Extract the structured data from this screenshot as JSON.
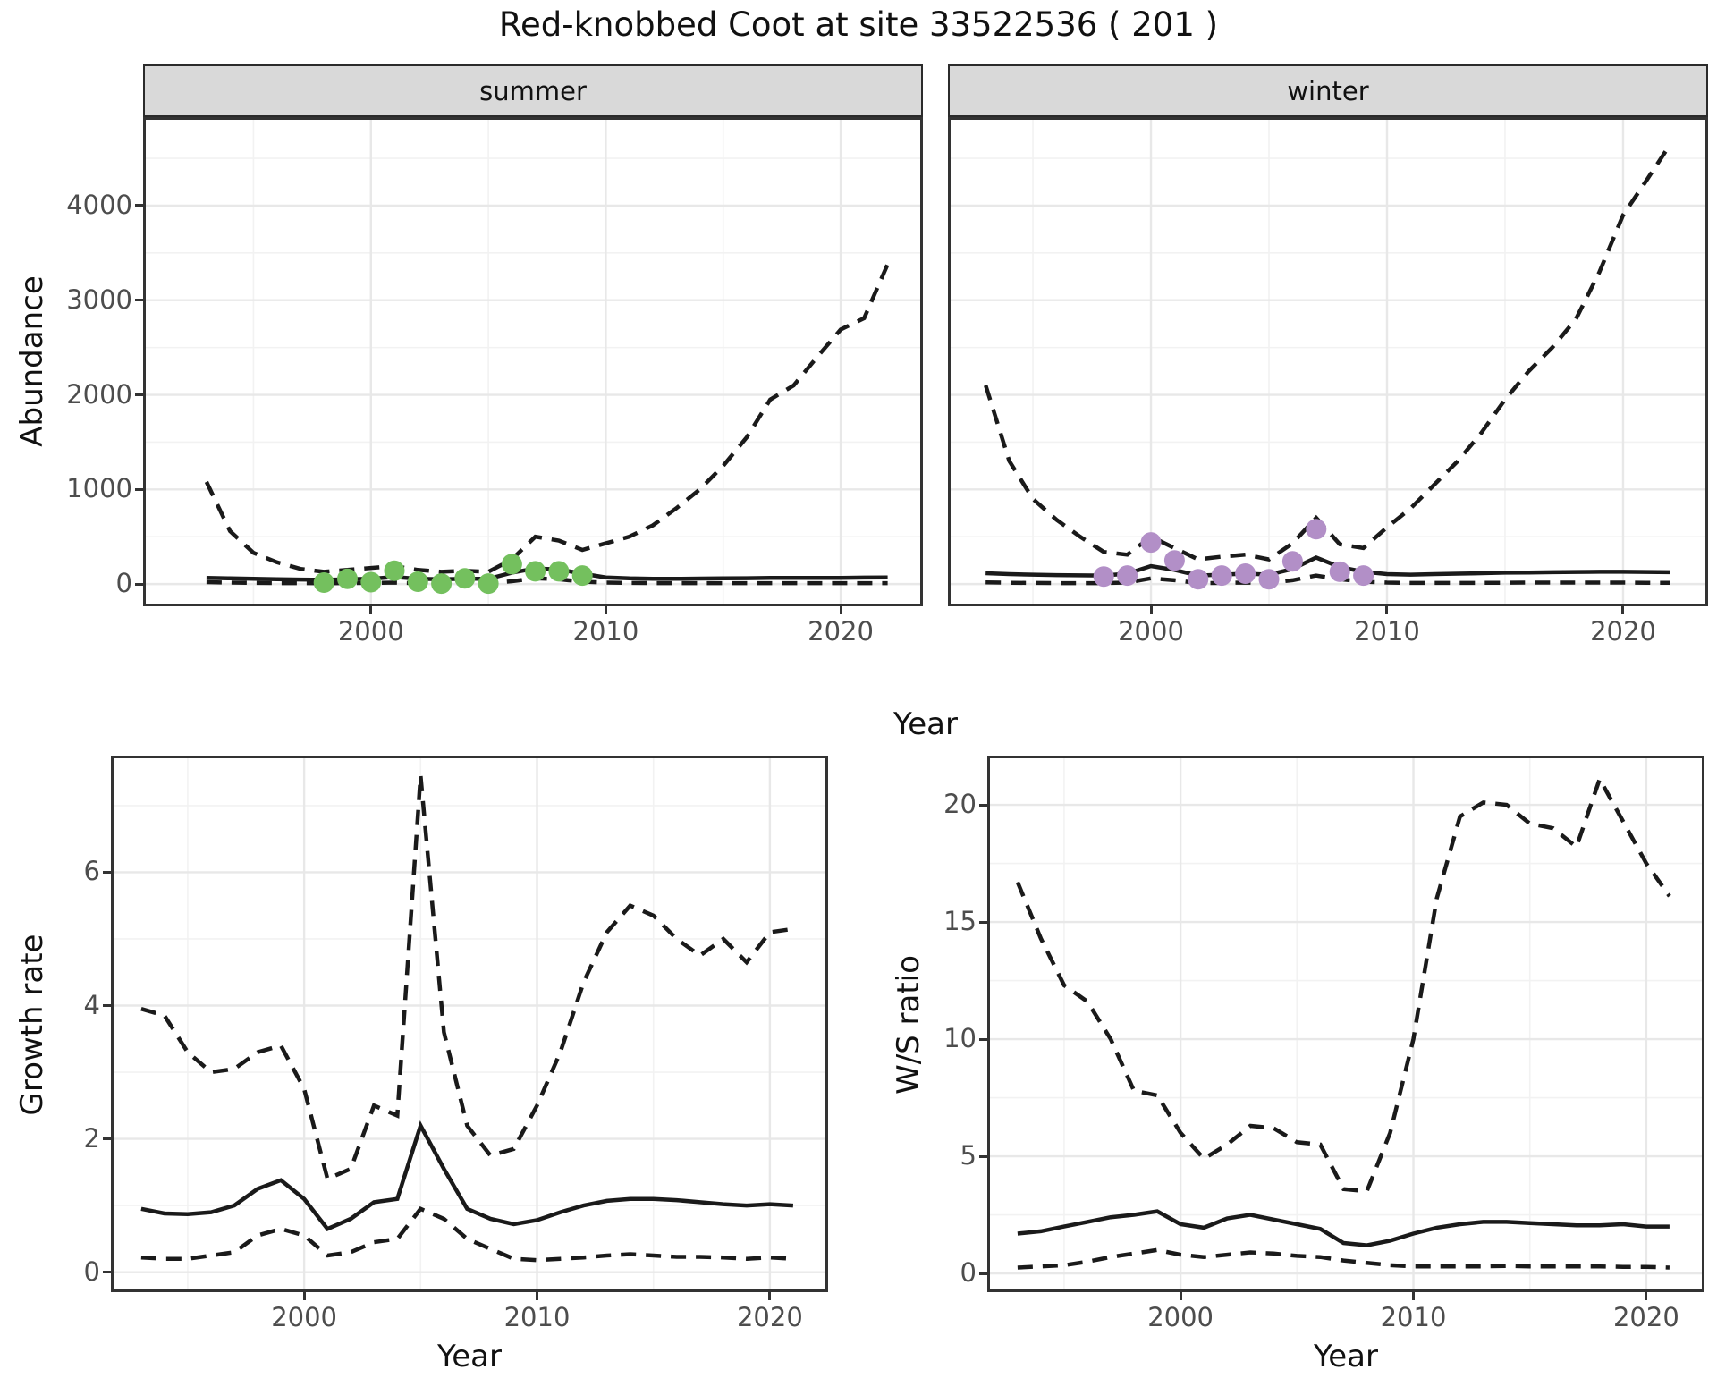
{
  "title": "Red-knobbed Coot at site 33522536 ( 201 )",
  "colors": {
    "line": "#1a1a1a",
    "grid_major": "#e8e8e8",
    "grid_minor": "#f2f2f2",
    "panel_border": "#333333",
    "strip_bg": "#d9d9d9",
    "axis_text": "#4d4d4d",
    "summer_points": "#74c05e",
    "winter_points": "#b28fc7"
  },
  "chart_data": [
    {
      "key": "summer",
      "type": "line",
      "strip_label": "summer",
      "xlabel": "Year",
      "ylabel": "Abundance",
      "xlim": [
        1990.3,
        2023.5
      ],
      "ylim": [
        -235,
        4935
      ],
      "xticks": [
        2000,
        2010,
        2020
      ],
      "xticks_minor": [
        1995,
        2005,
        2015
      ],
      "yticks": [
        0,
        1000,
        2000,
        3000,
        4000
      ],
      "yticks_minor": [
        500,
        1500,
        2500,
        3500,
        4500
      ],
      "grid": true,
      "legend": "none",
      "x": [
        1993,
        1994,
        1995,
        1996,
        1997,
        1998,
        1999,
        2000,
        2001,
        2002,
        2003,
        2004,
        2005,
        2006,
        2007,
        2008,
        2009,
        2010,
        2011,
        2012,
        2013,
        2014,
        2015,
        2016,
        2017,
        2018,
        2019,
        2020,
        2021,
        2022
      ],
      "series": [
        {
          "name": "upper-ci",
          "style": "dashed",
          "values": [
            1080,
            560,
            330,
            230,
            160,
            130,
            150,
            170,
            190,
            150,
            130,
            140,
            130,
            260,
            500,
            460,
            360,
            430,
            500,
            620,
            800,
            1000,
            1250,
            1550,
            1950,
            2100,
            2400,
            2690,
            2810,
            3380
          ]
        },
        {
          "name": "median",
          "style": "solid",
          "values": [
            65,
            60,
            55,
            50,
            48,
            45,
            50,
            55,
            75,
            55,
            50,
            55,
            55,
            120,
            165,
            155,
            110,
            70,
            60,
            55,
            55,
            58,
            60,
            62,
            65,
            65,
            65,
            65,
            68,
            70
          ]
        },
        {
          "name": "lower-ci",
          "style": "dashed",
          "values": [
            20,
            15,
            12,
            10,
            10,
            8,
            10,
            12,
            15,
            10,
            8,
            10,
            10,
            30,
            60,
            50,
            25,
            15,
            12,
            10,
            10,
            10,
            10,
            10,
            10,
            10,
            10,
            10,
            10,
            10
          ]
        }
      ],
      "points": {
        "name": "observed-count",
        "color": "#74c05e",
        "x": [
          1998,
          1999,
          2000,
          2001,
          2002,
          2003,
          2004,
          2005,
          2006,
          2007,
          2008,
          2009
        ],
        "y": [
          15,
          55,
          20,
          140,
          25,
          5,
          60,
          5,
          210,
          135,
          135,
          90
        ]
      }
    },
    {
      "key": "winter",
      "type": "line",
      "strip_label": "winter",
      "xlabel": "Year",
      "ylabel": "Abundance",
      "xlim": [
        1991.4,
        2023.6
      ],
      "ylim": [
        -235,
        4935
      ],
      "xticks": [
        2000,
        2010,
        2020
      ],
      "xticks_minor": [
        1995,
        2005,
        2015
      ],
      "yticks": [
        0,
        1000,
        2000,
        3000,
        4000
      ],
      "yticks_minor": [
        500,
        1500,
        2500,
        3500,
        4500
      ],
      "grid": true,
      "legend": "none",
      "x": [
        1993,
        1994,
        1995,
        1996,
        1997,
        1998,
        1999,
        2000,
        2001,
        2002,
        2003,
        2004,
        2005,
        2006,
        2007,
        2008,
        2009,
        2010,
        2011,
        2012,
        2013,
        2014,
        2015,
        2016,
        2017,
        2018,
        2019,
        2020,
        2021,
        2022
      ],
      "series": [
        {
          "name": "upper-ci",
          "style": "dashed",
          "values": [
            2100,
            1300,
            900,
            680,
            500,
            340,
            310,
            500,
            380,
            260,
            290,
            310,
            260,
            430,
            700,
            420,
            380,
            600,
            800,
            1050,
            1300,
            1600,
            1950,
            2250,
            2500,
            2800,
            3300,
            3900,
            4270,
            4650
          ]
        },
        {
          "name": "median",
          "style": "solid",
          "values": [
            115,
            105,
            100,
            95,
            92,
            90,
            110,
            190,
            150,
            90,
            100,
            110,
            100,
            160,
            280,
            180,
            130,
            105,
            100,
            105,
            110,
            115,
            120,
            122,
            125,
            128,
            130,
            130,
            128,
            125
          ]
        },
        {
          "name": "lower-ci",
          "style": "dashed",
          "values": [
            18,
            14,
            12,
            10,
            10,
            10,
            15,
            60,
            40,
            10,
            12,
            15,
            12,
            40,
            90,
            50,
            25,
            15,
            12,
            12,
            12,
            13,
            14,
            15,
            15,
            15,
            15,
            15,
            14,
            13
          ]
        }
      ],
      "points": {
        "name": "observed-count",
        "color": "#b28fc7",
        "x": [
          1998,
          1999,
          2000,
          2001,
          2002,
          2003,
          2004,
          2005,
          2006,
          2007,
          2008,
          2009
        ],
        "y": [
          80,
          90,
          440,
          250,
          50,
          90,
          110,
          50,
          240,
          580,
          130,
          90
        ]
      }
    },
    {
      "key": "growth",
      "type": "line",
      "strip_label": "",
      "xlabel": "Year",
      "ylabel": "Growth rate",
      "xlim": [
        1991.7,
        2022.5
      ],
      "ylim": [
        -0.3,
        7.75
      ],
      "xticks": [
        2000,
        2010,
        2020
      ],
      "xticks_minor": [
        1995,
        2005,
        2015
      ],
      "yticks": [
        0,
        2,
        4,
        6
      ],
      "yticks_minor": [
        1,
        3,
        5,
        7
      ],
      "grid": true,
      "legend": "none",
      "x": [
        1993,
        1994,
        1995,
        1996,
        1997,
        1998,
        1999,
        2000,
        2001,
        2002,
        2003,
        2004,
        2005,
        2006,
        2007,
        2008,
        2009,
        2010,
        2011,
        2012,
        2013,
        2014,
        2015,
        2016,
        2017,
        2018,
        2019,
        2020,
        2021
      ],
      "series": [
        {
          "name": "upper-ci",
          "style": "dashed",
          "values": [
            3.95,
            3.85,
            3.3,
            3.0,
            3.05,
            3.3,
            3.4,
            2.75,
            1.4,
            1.55,
            2.5,
            2.35,
            7.45,
            3.6,
            2.2,
            1.75,
            1.85,
            2.5,
            3.3,
            4.35,
            5.1,
            5.5,
            5.35,
            5.0,
            4.75,
            5.0,
            4.65,
            5.1,
            5.15
          ]
        },
        {
          "name": "median",
          "style": "solid",
          "values": [
            0.95,
            0.88,
            0.87,
            0.9,
            1.0,
            1.25,
            1.38,
            1.1,
            0.65,
            0.8,
            1.05,
            1.1,
            2.2,
            1.55,
            0.95,
            0.8,
            0.72,
            0.78,
            0.9,
            1.0,
            1.07,
            1.1,
            1.1,
            1.08,
            1.05,
            1.02,
            1.0,
            1.02,
            1.0
          ]
        },
        {
          "name": "lower-ci",
          "style": "dashed",
          "values": [
            0.22,
            0.2,
            0.2,
            0.25,
            0.3,
            0.55,
            0.65,
            0.55,
            0.25,
            0.3,
            0.45,
            0.5,
            0.95,
            0.8,
            0.5,
            0.35,
            0.2,
            0.18,
            0.2,
            0.22,
            0.25,
            0.27,
            0.25,
            0.23,
            0.23,
            0.22,
            0.2,
            0.22,
            0.2
          ]
        }
      ]
    },
    {
      "key": "ws",
      "type": "line",
      "strip_label": "",
      "xlabel": "Year",
      "ylabel": "W/S ratio",
      "xlim": [
        1991.7,
        2022.5
      ],
      "ylim": [
        -0.8,
        22.1
      ],
      "xticks": [
        2000,
        2010,
        2020
      ],
      "xticks_minor": [
        1995,
        2005,
        2015
      ],
      "yticks": [
        0,
        5,
        10,
        15,
        20
      ],
      "yticks_minor": [
        2.5,
        7.5,
        12.5,
        17.5
      ],
      "grid": true,
      "legend": "none",
      "x": [
        1993,
        1994,
        1995,
        1996,
        1997,
        1998,
        1999,
        2000,
        2001,
        2002,
        2003,
        2004,
        2005,
        2006,
        2007,
        2008,
        2009,
        2010,
        2011,
        2012,
        2013,
        2014,
        2015,
        2016,
        2017,
        2018,
        2019,
        2020,
        2021
      ],
      "series": [
        {
          "name": "upper-ci",
          "style": "dashed",
          "values": [
            16.7,
            14.3,
            12.3,
            11.6,
            10.0,
            7.8,
            7.6,
            6.0,
            4.9,
            5.5,
            6.3,
            6.2,
            5.6,
            5.5,
            3.6,
            3.5,
            6.0,
            10.0,
            16.0,
            19.5,
            20.1,
            20.0,
            19.2,
            19.0,
            18.2,
            21.1,
            19.3,
            17.5,
            16.1
          ]
        },
        {
          "name": "median",
          "style": "solid",
          "values": [
            1.7,
            1.8,
            2.0,
            2.2,
            2.4,
            2.5,
            2.65,
            2.1,
            1.95,
            2.35,
            2.5,
            2.3,
            2.1,
            1.9,
            1.3,
            1.2,
            1.4,
            1.7,
            1.95,
            2.1,
            2.2,
            2.2,
            2.15,
            2.1,
            2.05,
            2.05,
            2.1,
            2.0,
            2.0
          ]
        },
        {
          "name": "lower-ci",
          "style": "dashed",
          "values": [
            0.25,
            0.3,
            0.35,
            0.5,
            0.7,
            0.85,
            1.0,
            0.8,
            0.7,
            0.8,
            0.9,
            0.85,
            0.75,
            0.7,
            0.55,
            0.45,
            0.35,
            0.3,
            0.3,
            0.3,
            0.3,
            0.32,
            0.3,
            0.3,
            0.3,
            0.3,
            0.28,
            0.28,
            0.25
          ]
        }
      ]
    }
  ]
}
